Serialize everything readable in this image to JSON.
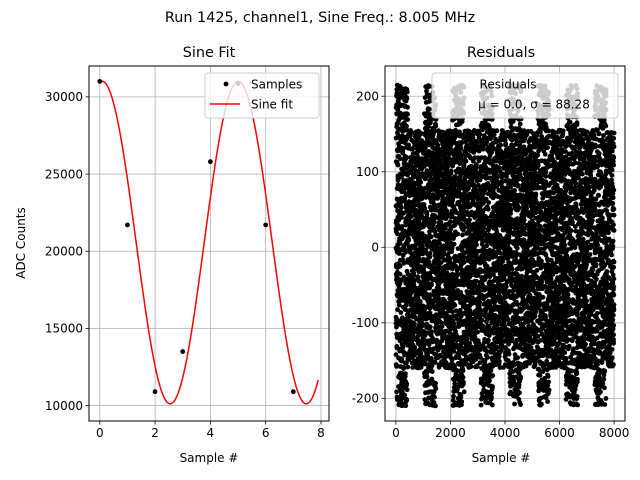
{
  "suptitle": "Run 1425, channel1, Sine Freq.: 8.005 MHz",
  "colors": {
    "fit": "#ff0000",
    "marker": "#000000",
    "grid": "#b0b0b0"
  },
  "chart_data": [
    {
      "type": "scatter",
      "title": "Sine Fit",
      "xlabel": "Sample #",
      "ylabel": "ADC Counts",
      "xlim": [
        -0.39,
        8.29
      ],
      "ylim": [
        9000,
        32000
      ],
      "xticks": [
        0,
        2,
        4,
        6,
        8
      ],
      "yticks": [
        10000,
        15000,
        20000,
        25000,
        30000
      ],
      "grid": true,
      "legend": {
        "placement": "top-right",
        "entries": [
          "Samples",
          "Sine fit"
        ]
      },
      "samples": {
        "name": "Samples",
        "x": [
          0,
          1,
          2,
          3,
          4,
          5,
          6,
          7
        ],
        "y": [
          31000,
          21700,
          10900,
          13500,
          25800,
          30850,
          21700,
          10900
        ]
      },
      "fit": {
        "name": "Sine fit",
        "model": "offset + amplitude*cos(2*pi*frequency_cycles_per_sample*x + phase)",
        "offset": 20560,
        "amplitude": 10450,
        "frequency_cycles_per_sample": 0.2032,
        "phase": -0.11,
        "x_range": [
          0,
          7.9
        ]
      }
    },
    {
      "type": "scatter",
      "title": "Residuals",
      "xlabel": "Sample #",
      "xlim": [
        -400,
        8400
      ],
      "ylim": [
        -230,
        240
      ],
      "xticks": [
        0,
        2000,
        4000,
        6000,
        8000
      ],
      "yticks": [
        -200,
        -100,
        0,
        100,
        200
      ],
      "grid": true,
      "legend": {
        "placement": "top-right",
        "entries": [
          "Residuals",
          "μ = 0.0, σ = 88.28"
        ]
      },
      "stats": {
        "mu": 0.0,
        "sigma": 88.28
      },
      "series": {
        "name": "Residuals",
        "n_points": 8000,
        "x_range": [
          0,
          8000
        ],
        "value_range": [
          -210,
          215
        ],
        "band_period_samples": 1040,
        "band_width_samples": 430
      }
    }
  ]
}
